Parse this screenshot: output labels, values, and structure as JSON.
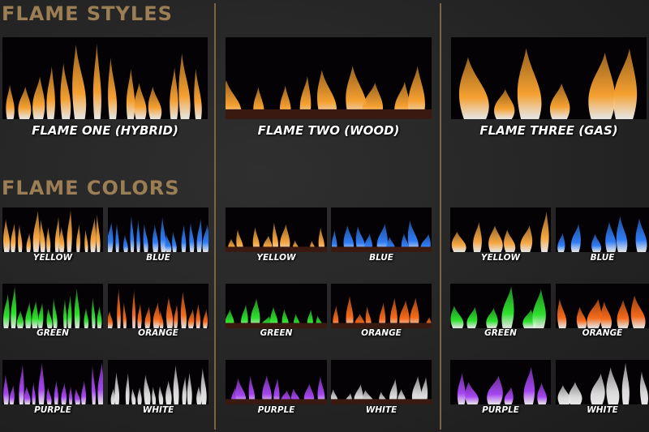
{
  "headings": {
    "styles": "FLAME STYLES",
    "colors": "FLAME COLORS"
  },
  "styles": [
    {
      "label": "FLAME ONE (HYBRID)",
      "type": "hybrid"
    },
    {
      "label": "FLAME TWO (WOOD)",
      "type": "wood"
    },
    {
      "label": "FLAME THREE (GAS)",
      "type": "gas"
    }
  ],
  "colors": [
    {
      "label": "YELLOW",
      "hex": "#f5a640"
    },
    {
      "label": "BLUE",
      "hex": "#2f7cf5"
    },
    {
      "label": "GREEN",
      "hex": "#2ee02e"
    },
    {
      "label": "ORANGE",
      "hex": "#f56a1a"
    },
    {
      "label": "PURPLE",
      "hex": "#a646f0"
    },
    {
      "label": "WHITE",
      "hex": "#d8d8d8"
    }
  ],
  "theme": {
    "accent": "#9c7e55",
    "divider": "#7a6444"
  }
}
